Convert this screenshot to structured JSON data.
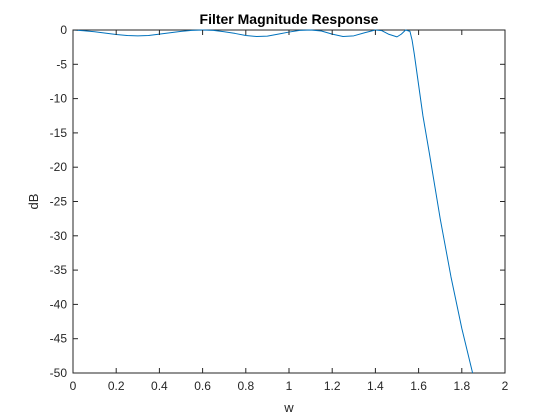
{
  "colors": {
    "line": "#0072BD",
    "axis": "#262626",
    "background": "#ffffff"
  },
  "chart_data": {
    "type": "line",
    "title": "Filter Magnitude Response",
    "xlabel": "w",
    "ylabel": "dB",
    "xlim": [
      0,
      2
    ],
    "ylim": [
      -50,
      0
    ],
    "xticks": [
      0,
      0.2,
      0.4,
      0.6,
      0.8,
      1,
      1.2,
      1.4,
      1.6,
      1.8,
      2
    ],
    "xtick_labels": [
      "0",
      "0.2",
      "0.4",
      "0.6",
      "0.8",
      "1",
      "1.2",
      "1.4",
      "1.6",
      "1.8",
      "2"
    ],
    "yticks": [
      0,
      -5,
      -10,
      -15,
      -20,
      -25,
      -30,
      -35,
      -40,
      -45,
      -50
    ],
    "ytick_labels": [
      "0",
      "-5",
      "-10",
      "-15",
      "-20",
      "-25",
      "-30",
      "-35",
      "-40",
      "-45",
      "-50"
    ],
    "grid": false,
    "series": [
      {
        "x": [
          0,
          0.05,
          0.1,
          0.15,
          0.2,
          0.25,
          0.3,
          0.35,
          0.4,
          0.45,
          0.5,
          0.55,
          0.6,
          0.65,
          0.7,
          0.75,
          0.8,
          0.85,
          0.9,
          0.95,
          1.0,
          1.05,
          1.1,
          1.15,
          1.2,
          1.25,
          1.3,
          1.35,
          1.4,
          1.43,
          1.46,
          1.5,
          1.52,
          1.54,
          1.56,
          1.57,
          1.58,
          1.6,
          1.62,
          1.65,
          1.7,
          1.75,
          1.8,
          1.85
        ],
        "y": [
          0,
          -0.1,
          -0.25,
          -0.45,
          -0.65,
          -0.8,
          -0.85,
          -0.8,
          -0.6,
          -0.4,
          -0.2,
          -0.05,
          0,
          -0.05,
          -0.25,
          -0.5,
          -0.8,
          -0.95,
          -0.9,
          -0.6,
          -0.3,
          -0.05,
          0.0,
          -0.15,
          -0.6,
          -0.95,
          -0.85,
          -0.4,
          0.0,
          -0.1,
          -0.6,
          -1.0,
          -0.6,
          0.0,
          -0.2,
          -1.5,
          -3.5,
          -8.0,
          -12.5,
          -18.0,
          -27.5,
          -36.0,
          -43.5,
          -50.0
        ]
      }
    ]
  }
}
